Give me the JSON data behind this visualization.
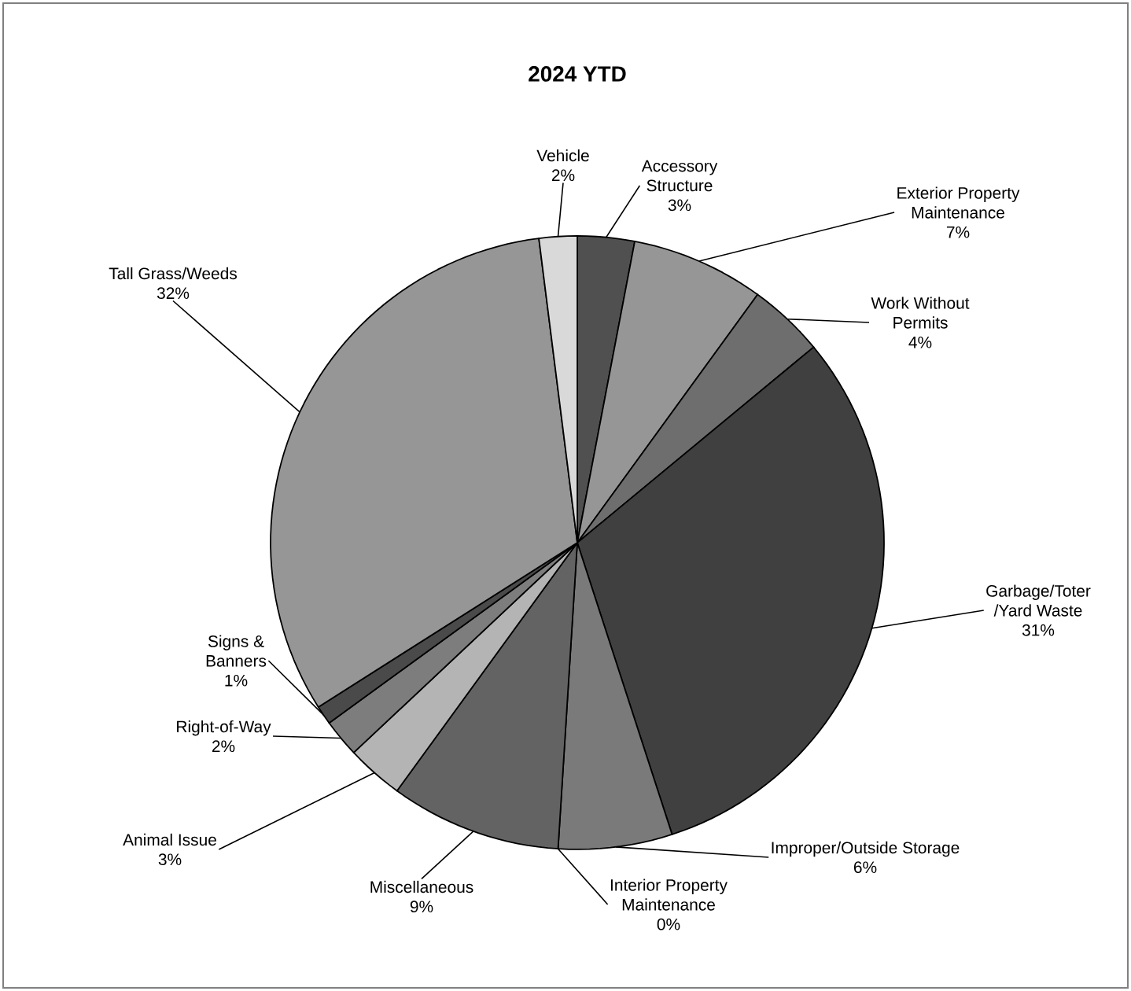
{
  "chart_data": {
    "type": "pie",
    "title": "2024 YTD",
    "categories": [
      "Accessory Structure",
      "Exterior Property Maintenance",
      "Work Without Permits",
      "Garbage/Toter /Yard Waste",
      "Improper/Outside Storage",
      "Interior Property Maintenance",
      "Miscellaneous",
      "Animal Issue",
      "Right-of-Way",
      "Signs & Banners",
      "Tall Grass/Weeds",
      "Vehicle"
    ],
    "values": [
      3,
      7,
      4,
      31,
      6,
      0,
      9,
      3,
      2,
      1,
      32,
      2
    ],
    "value_labels": [
      "3%",
      "7%",
      "4%",
      "31%",
      "6%",
      "0%",
      "9%",
      "3%",
      "2%",
      "1%",
      "32%",
      "2%"
    ],
    "colors": [
      "#505050",
      "#969696",
      "#6e6e6e",
      "#404040",
      "#7a7a7a",
      "#c0c0c0",
      "#636363",
      "#b4b4b4",
      "#7d7d7d",
      "#4a4a4a",
      "#969696",
      "#d9d9d9"
    ]
  }
}
